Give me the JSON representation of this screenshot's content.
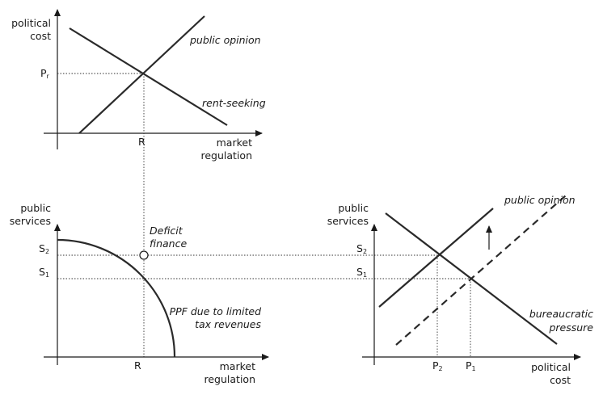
{
  "top_panel": {
    "y_label_line1": "political",
    "y_label_line2": "cost",
    "x_label_line1": "market",
    "x_label_line2": "regulation",
    "tick_y": "P",
    "tick_y_sub": "r",
    "tick_x": "R",
    "curve_public_opinion": "public opinion",
    "curve_rent_seeking": "rent-seeking"
  },
  "left_panel": {
    "y_label_line1": "public",
    "y_label_line2": "services",
    "x_label_line1": "market",
    "x_label_line2": "regulation",
    "tick_s2": "S",
    "tick_s2_sub": "2",
    "tick_s1": "S",
    "tick_s1_sub": "1",
    "tick_x": "R",
    "deficit_line1": "Deficit",
    "deficit_line2": "finance",
    "ppf_line1": "PPF due to limited",
    "ppf_line2": "tax revenues"
  },
  "right_panel": {
    "y_label_line1": "public",
    "y_label_line2": "services",
    "x_label_line1": "political",
    "x_label_line2": "cost",
    "tick_s2": "S",
    "tick_s2_sub": "2",
    "tick_s1": "S",
    "tick_s1_sub": "1",
    "tick_p2": "P",
    "tick_p2_sub": "2",
    "tick_p1": "P",
    "tick_p1_sub": "1",
    "curve_public_opinion": "public opinion",
    "curve_bureaucratic_line1": "bureaucratic",
    "curve_bureaucratic_line2": "pressure"
  },
  "colors": {
    "ink": "#1a1a1a",
    "curve": "#2a2a2a"
  }
}
